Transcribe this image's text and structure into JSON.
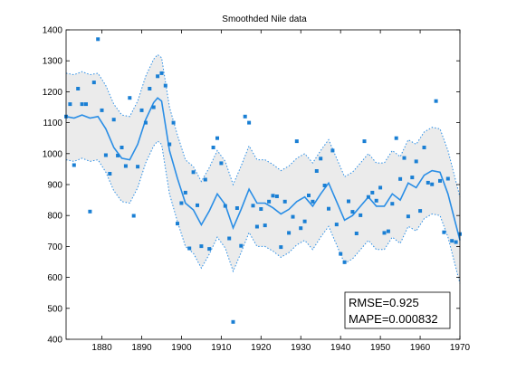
{
  "chart_data": {
    "type": "scatter",
    "title": "Smoothded Nile data",
    "xlabel": "",
    "ylabel": "",
    "xlim": [
      1871,
      1970
    ],
    "ylim": [
      400,
      1400
    ],
    "x_ticks": [
      1880,
      1890,
      1900,
      1910,
      1920,
      1930,
      1940,
      1950,
      1960,
      1970
    ],
    "y_ticks": [
      400,
      500,
      600,
      700,
      800,
      900,
      1000,
      1100,
      1200,
      1300,
      1400
    ],
    "grid": false,
    "colors": {
      "points": "#1a7fd4",
      "smooth": "#2a8ee6",
      "band_fill": "#ebebeb",
      "band_edge": "#2a8ee6",
      "axes": "#000000"
    },
    "stats": {
      "rmse_text": "RMSE=0.925",
      "mape_text": "MAPE=0.000832"
    },
    "points": {
      "x": [
        1871,
        1872,
        1873,
        1874,
        1875,
        1876,
        1877,
        1878,
        1879,
        1880,
        1881,
        1882,
        1883,
        1884,
        1885,
        1886,
        1887,
        1888,
        1889,
        1890,
        1891,
        1892,
        1893,
        1894,
        1895,
        1896,
        1897,
        1898,
        1899,
        1900,
        1901,
        1902,
        1903,
        1904,
        1905,
        1906,
        1907,
        1908,
        1909,
        1910,
        1911,
        1912,
        1913,
        1914,
        1915,
        1916,
        1917,
        1918,
        1919,
        1920,
        1921,
        1922,
        1923,
        1924,
        1925,
        1926,
        1927,
        1928,
        1929,
        1930,
        1931,
        1932,
        1933,
        1934,
        1935,
        1936,
        1937,
        1938,
        1939,
        1940,
        1941,
        1942,
        1943,
        1944,
        1945,
        1946,
        1947,
        1948,
        1949,
        1950,
        1951,
        1952,
        1953,
        1954,
        1955,
        1956,
        1957,
        1958,
        1959,
        1960,
        1961,
        1962,
        1963,
        1964,
        1965,
        1966,
        1967,
        1968,
        1969,
        1970
      ],
      "y": [
        1120,
        1160,
        963,
        1210,
        1160,
        1160,
        813,
        1230,
        1370,
        1140,
        995,
        935,
        1110,
        994,
        1020,
        960,
        1180,
        799,
        958,
        1140,
        1100,
        1210,
        1150,
        1250,
        1260,
        1220,
        1030,
        1100,
        774,
        840,
        874,
        694,
        940,
        833,
        701,
        916,
        692,
        1020,
        1050,
        969,
        831,
        726,
        456,
        824,
        702,
        1120,
        1100,
        832,
        764,
        821,
        768,
        845,
        864,
        862,
        698,
        845,
        744,
        796,
        1040,
        759,
        781,
        865,
        845,
        944,
        984,
        897,
        822,
        1010,
        771,
        676,
        649,
        846,
        812,
        742,
        801,
        1040,
        860,
        874,
        848,
        890,
        744,
        749,
        838,
        1050,
        918,
        986,
        797,
        923,
        975,
        815,
        1020,
        906,
        901,
        1170,
        912,
        746,
        919,
        718,
        714,
        740
      ]
    },
    "smooth": {
      "x": [
        1871,
        1873,
        1875,
        1877,
        1879,
        1881,
        1883,
        1885,
        1887,
        1889,
        1891,
        1893,
        1894,
        1895,
        1897,
        1899,
        1901,
        1903,
        1905,
        1907,
        1909,
        1911,
        1913,
        1915,
        1917,
        1919,
        1921,
        1923,
        1925,
        1927,
        1929,
        1931,
        1933,
        1935,
        1937,
        1939,
        1941,
        1943,
        1945,
        1947,
        1949,
        1951,
        1953,
        1955,
        1957,
        1959,
        1961,
        1963,
        1965,
        1967,
        1969,
        1970
      ],
      "y": [
        1120,
        1115,
        1125,
        1115,
        1120,
        1080,
        1020,
        985,
        980,
        1030,
        1110,
        1165,
        1180,
        1170,
        1010,
        920,
        840,
        818,
        770,
        815,
        870,
        835,
        760,
        820,
        885,
        840,
        840,
        825,
        805,
        820,
        845,
        860,
        830,
        870,
        905,
        845,
        785,
        800,
        830,
        860,
        830,
        830,
        870,
        850,
        905,
        890,
        930,
        945,
        940,
        870,
        770,
        720
      ],
      "upper": [
        1260,
        1255,
        1265,
        1255,
        1260,
        1220,
        1160,
        1125,
        1120,
        1170,
        1250,
        1305,
        1320,
        1310,
        1150,
        1060,
        980,
        958,
        910,
        955,
        1010,
        975,
        900,
        960,
        1025,
        980,
        980,
        965,
        945,
        960,
        985,
        1000,
        970,
        1010,
        1045,
        985,
        925,
        940,
        970,
        1000,
        970,
        970,
        1010,
        990,
        1045,
        1030,
        1070,
        1085,
        1080,
        1010,
        910,
        860
      ],
      "lower": [
        980,
        975,
        985,
        975,
        980,
        940,
        880,
        845,
        840,
        890,
        970,
        1025,
        1040,
        1030,
        870,
        780,
        700,
        678,
        630,
        675,
        730,
        695,
        620,
        680,
        745,
        700,
        700,
        685,
        665,
        680,
        705,
        720,
        690,
        730,
        765,
        705,
        645,
        660,
        690,
        720,
        690,
        690,
        730,
        710,
        765,
        750,
        790,
        805,
        800,
        730,
        630,
        580
      ]
    }
  }
}
